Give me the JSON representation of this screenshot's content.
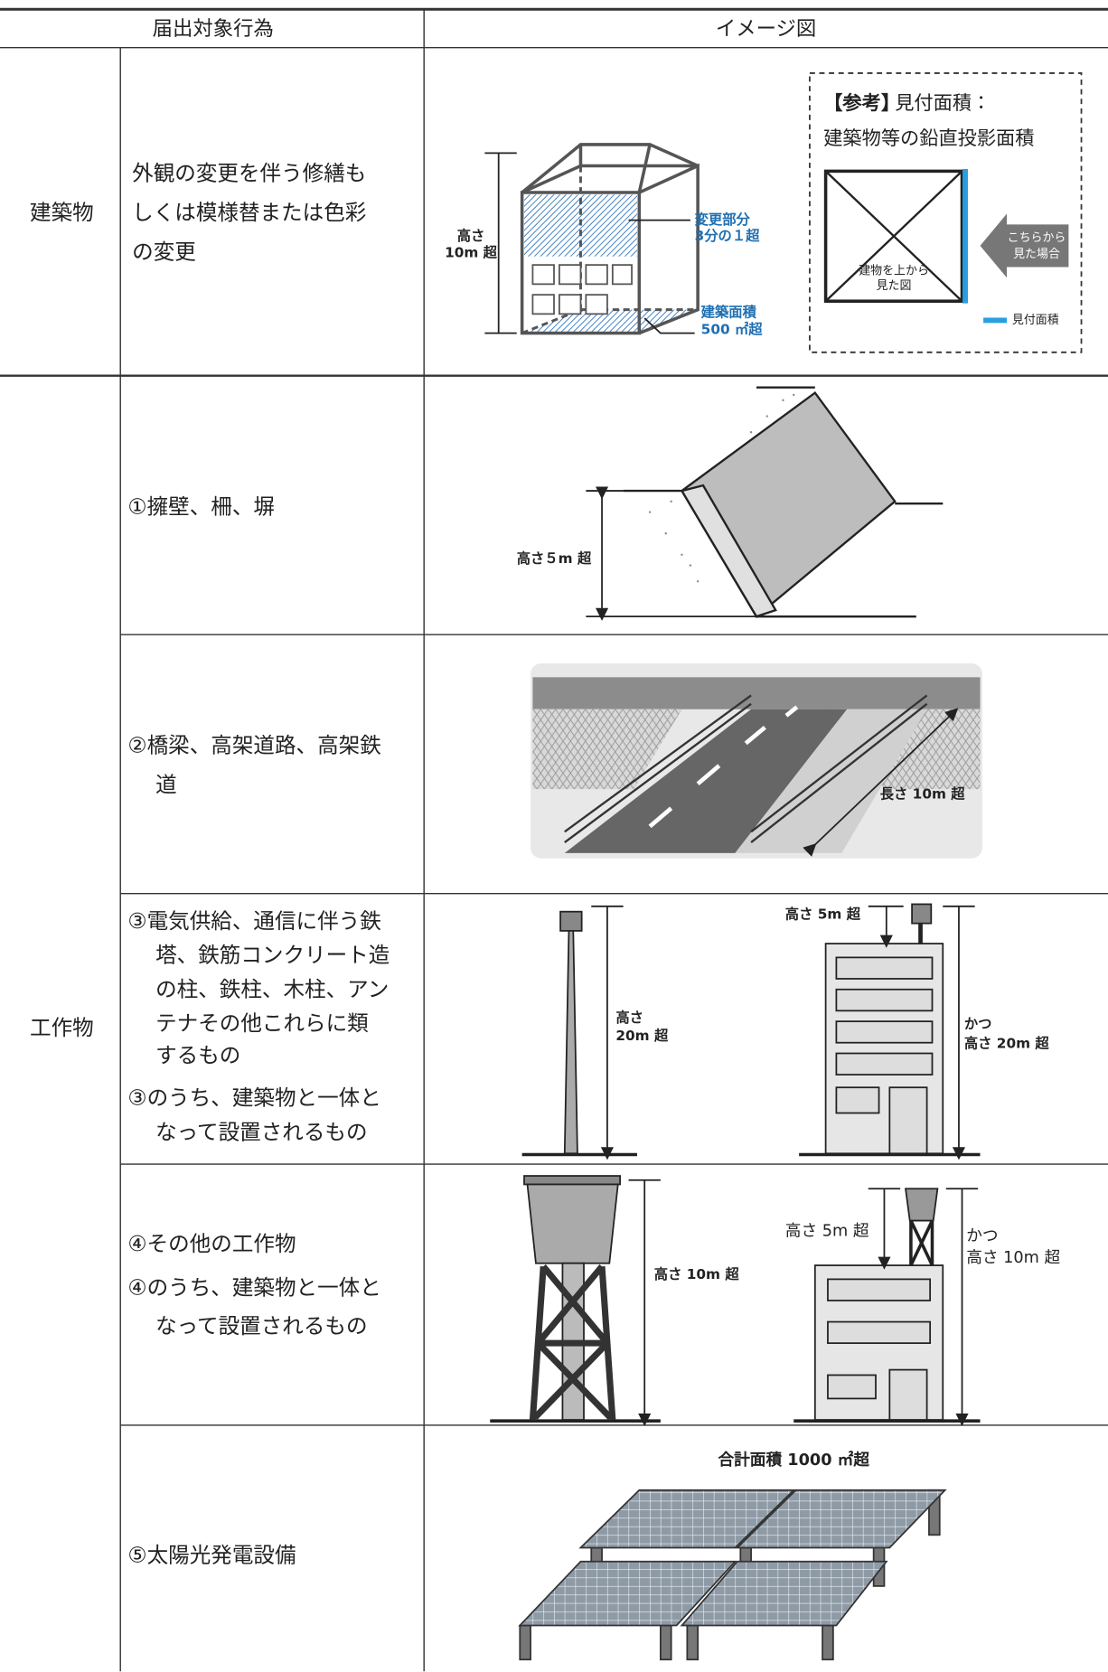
{
  "header": {
    "col1": "届出対象行為",
    "col2": "イメージ図"
  },
  "building": {
    "category": "建築物",
    "description": [
      "外観の変更を伴う修繕も",
      "しくは模様替または色彩",
      "の変更"
    ],
    "figure": {
      "height": [
        "高さ",
        "10m 超"
      ],
      "changed": [
        "変更部分",
        "3分の１超"
      ],
      "area": [
        "建築面積",
        "500 ㎡超"
      ],
      "reference": {
        "title_bracket": "【参考】",
        "title": "見付面積：",
        "subtitle": "建築物等の鉛直投影面積",
        "top_view": [
          "建物を上から",
          "見た図"
        ],
        "view_from": [
          "こちらから",
          "見た場合"
        ],
        "legend": "見付面積"
      }
    }
  },
  "structures": {
    "category": "工作物",
    "items": [
      {
        "description": [
          "①擁壁、柵、塀"
        ],
        "labels": [
          "高さ５m 超"
        ]
      },
      {
        "description": [
          "②橋梁、高架道路、高架鉄",
          "道"
        ],
        "labels": [
          "長さ 10m 超"
        ]
      },
      {
        "description": [
          "③電気供給、通信に伴う鉄",
          "塔、鉄筋コンクリート造",
          "の柱、鉄柱、木柱、アン",
          "テナその他これらに類",
          "するもの"
        ],
        "sub_description": [
          "③のうち、建築物と一体と",
          "なって設置されるもの"
        ],
        "labels": [
          "高さ",
          "20m 超",
          "高さ 5m 超",
          "かつ",
          "高さ 20m 超"
        ]
      },
      {
        "description": [
          "④その他の工作物"
        ],
        "sub_description": [
          "④のうち、建築物と一体と",
          "なって設置されるもの"
        ],
        "labels": [
          "高さ 10m 超",
          "高さ 5m 超",
          "かつ",
          "高さ 10m 超"
        ]
      },
      {
        "description": [
          "⑤太陽光発電設備"
        ],
        "labels": [
          "合計面積 1000 ㎡超"
        ]
      }
    ]
  }
}
